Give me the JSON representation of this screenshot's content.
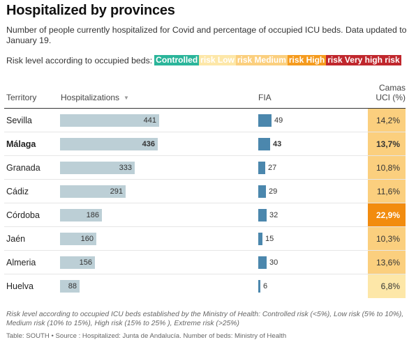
{
  "title": "Hospitalized by provinces",
  "subtitle": "Number of people currently hospitalized for Covid and percentage of occupied ICU beds. Data updated to January 19.",
  "legend": {
    "label": "Risk level according to occupied beds:",
    "items": [
      {
        "text": "Controlled",
        "color": "#2bb59a",
        "text_color": "#ffffff"
      },
      {
        "text": "risk Low",
        "color": "#fde7a8",
        "text_color": "#ffffff"
      },
      {
        "text": "risk Medium",
        "color": "#fbcf7e",
        "text_color": "#ffffff"
      },
      {
        "text": "risk High",
        "color": "#f59b1e",
        "text_color": "#ffffff"
      },
      {
        "text": "risk Very high risk",
        "color": "#c0272d",
        "text_color": "#ffffff"
      }
    ]
  },
  "table": {
    "headers": {
      "territory": "Territory",
      "hospitalizations": "Hospitalizations",
      "sort_icon": "sort-down-icon",
      "fia": "FIA",
      "camas_line1": "Camas",
      "camas_line2": "UCI (%)"
    },
    "rows": [
      {
        "territory": "Sevilla",
        "hospitalizations": 441,
        "fia": 49,
        "icu": "14,2%",
        "icu_color": "#fbcf7e",
        "bold": false
      },
      {
        "territory": "Málaga",
        "hospitalizations": 436,
        "fia": 43,
        "icu": "13,7%",
        "icu_color": "#fbcf7e",
        "bold": true
      },
      {
        "territory": "Granada",
        "hospitalizations": 333,
        "fia": 27,
        "icu": "10,8%",
        "icu_color": "#fbcf7e",
        "bold": false
      },
      {
        "territory": "Cádiz",
        "hospitalizations": 291,
        "fia": 29,
        "icu": "11,6%",
        "icu_color": "#fbcf7e",
        "bold": false
      },
      {
        "territory": "Córdoba",
        "hospitalizations": 186,
        "fia": 32,
        "icu": "22,9%",
        "icu_color": "#f28c0f",
        "bold": false,
        "hot": true
      },
      {
        "territory": "Jaén",
        "hospitalizations": 160,
        "fia": 15,
        "icu": "10,3%",
        "icu_color": "#fbcf7e",
        "bold": false
      },
      {
        "territory": "Almeria",
        "hospitalizations": 156,
        "fia": 30,
        "icu": "13,6%",
        "icu_color": "#fbcf7e",
        "bold": false
      },
      {
        "territory": "Huelva",
        "hospitalizations": 88,
        "fia": 6,
        "icu": "6,8%",
        "icu_color": "#fde7a8",
        "bold": false
      }
    ]
  },
  "footnote": "Risk level according to occupied ICU beds established by the Ministry of Health: Controlled risk (<5%), Low risk (5% to 10%), Medium risk (10% to 15%), High risk (15% to 25% ), Extreme risk (>25%)",
  "source": "Table: SOUTH • Source : Hospitalized: Junta de Andalucía. Number of beds: Ministry of Health"
}
